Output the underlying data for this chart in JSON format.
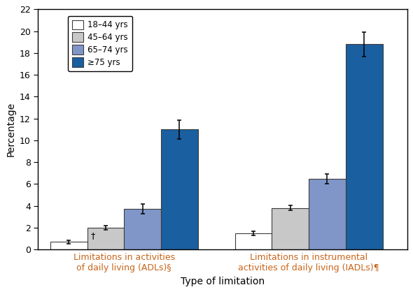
{
  "categories": [
    "Limitations in activities\nof daily living (ADLs)§",
    "Limitations in instrumental\nactivities of daily living (IADLs)¶"
  ],
  "age_groups": [
    "18–44 yrs",
    "45–64 yrs",
    "65–74 yrs",
    "≥75 yrs"
  ],
  "bar_colors": [
    "#ffffff",
    "#c8c8c8",
    "#8096c8",
    "#1a5fa0"
  ],
  "bar_edgecolor": "#3c3c3c",
  "values": [
    [
      0.7,
      2.0,
      3.7,
      11.0
    ],
    [
      1.5,
      3.8,
      6.5,
      18.8
    ]
  ],
  "errors": [
    [
      0.15,
      0.22,
      0.45,
      0.85
    ],
    [
      0.18,
      0.22,
      0.45,
      1.1
    ]
  ],
  "ylabel": "Percentage",
  "xlabel": "Type of limitation",
  "ylim": [
    0,
    22
  ],
  "yticks": [
    0,
    2,
    4,
    6,
    8,
    10,
    12,
    14,
    16,
    18,
    20,
    22
  ],
  "bar_width": 0.15,
  "group_centers": [
    0.35,
    1.1
  ],
  "dagger_annotation": "†",
  "background_color": "#ffffff",
  "legend_text_color": "#000000",
  "x_label_color": "#c86418",
  "text_color": "#000000",
  "error_color": "#000000",
  "legend_fontsize": 8.5,
  "axis_label_fontsize": 10,
  "tick_fontsize": 9,
  "category_label_color": "#c86418",
  "xlim": [
    0.0,
    1.5
  ]
}
